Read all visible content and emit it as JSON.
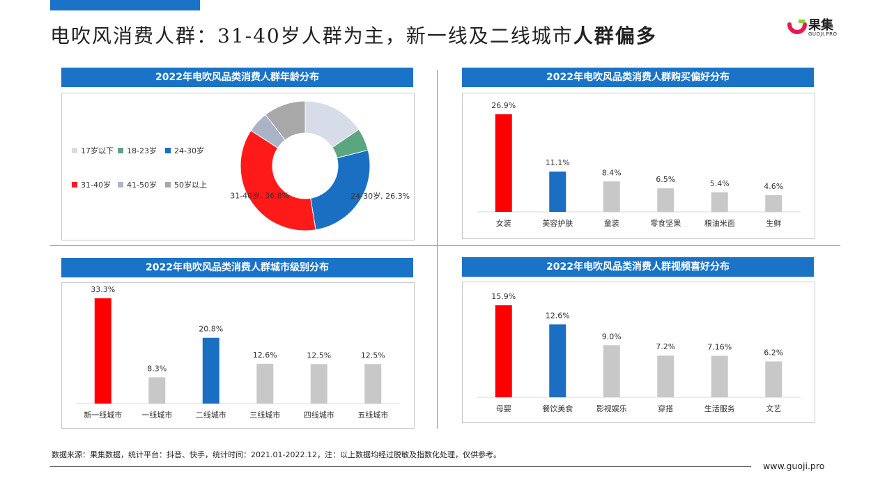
{
  "page": {
    "title_regular": "电吹风消费人群：31-40岁人群为主，新一线及二线城市",
    "title_bold": "人群偏多",
    "logo": {
      "name": "果集",
      "sub": "GUOJI.PRO"
    },
    "footer": "数据来源：果集数据，统计平台：抖音、快手，统计时间：2021.01-2022.12，注：以上数据均经过脱敏及指数化处理，仅供参考。",
    "url": "www.guoji.pro"
  },
  "colors": {
    "red": "#ff0000",
    "blue": "#1a6fc2",
    "gray": "#c8c8c8",
    "header": "#1a73c7"
  },
  "chart_data": [
    {
      "type": "pie",
      "title": "2022年电吹风品类消费人群年龄分布",
      "legend_position": "left",
      "categories": [
        "17岁以下",
        "18-23岁",
        "24-30岁",
        "31-40岁",
        "41-50岁",
        "50岁以上"
      ],
      "values": [
        15.5,
        5.6,
        26.3,
        36.8,
        5.3,
        10.5
      ],
      "colors": [
        "#d6dce8",
        "#5aa67e",
        "#1a6fc2",
        "#ff1a1a",
        "#aab4c6",
        "#a8a8a8"
      ],
      "data_labels": [
        {
          "category": "24-30岁",
          "text": "24-30岁, 26.3%"
        },
        {
          "category": "31-40岁",
          "text": "31-40岁, 36.8%"
        }
      ]
    },
    {
      "type": "bar",
      "title": "2022年电吹风品类消费人群购买偏好分布",
      "categories": [
        "女装",
        "美容护肤",
        "童装",
        "零食坚果",
        "粮油米面",
        "生鲜"
      ],
      "values": [
        26.9,
        11.1,
        8.4,
        6.5,
        5.4,
        4.6
      ],
      "labels": [
        "26.9%",
        "11.1%",
        "8.4%",
        "6.5%",
        "5.4%",
        "4.6%"
      ],
      "colors": [
        "#ff0000",
        "#1a6fc2",
        "#c8c8c8",
        "#c8c8c8",
        "#c8c8c8",
        "#c8c8c8"
      ]
    },
    {
      "type": "bar",
      "title": "2022年电吹风品类消费人群城市级别分布",
      "categories": [
        "新一线城市",
        "一线城市",
        "二线城市",
        "三线城市",
        "四线城市",
        "五线城市"
      ],
      "values": [
        33.3,
        8.3,
        20.8,
        12.6,
        12.5,
        12.5
      ],
      "labels": [
        "33.3%",
        "8.3%",
        "20.8%",
        "12.6%",
        "12.5%",
        "12.5%"
      ],
      "colors": [
        "#ff0000",
        "#c8c8c8",
        "#1a6fc2",
        "#c8c8c8",
        "#c8c8c8",
        "#c8c8c8"
      ]
    },
    {
      "type": "bar",
      "title": "2022年电吹风品类消费人群视频喜好分布",
      "categories": [
        "母婴",
        "餐饮美食",
        "影视娱乐",
        "穿搭",
        "生活服务",
        "文艺"
      ],
      "values": [
        15.9,
        12.6,
        9.0,
        7.2,
        7.16,
        6.2
      ],
      "labels": [
        "15.9%",
        "12.6%",
        "9.0%",
        "7.2%",
        "7.16%",
        "6.2%"
      ],
      "colors": [
        "#ff0000",
        "#1a6fc2",
        "#c8c8c8",
        "#c8c8c8",
        "#c8c8c8",
        "#c8c8c8"
      ]
    }
  ]
}
